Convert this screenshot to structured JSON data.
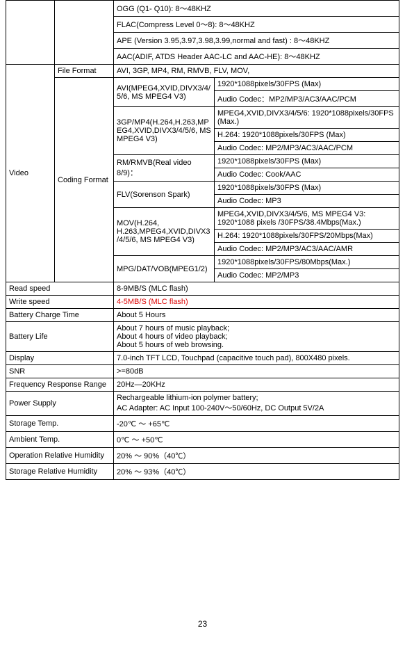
{
  "audio_codecs": {
    "ogg": "OGG (Q1- Q10): 8～48KHZ",
    "flac": "FLAC(Compress Level 0～8): 8～48KHZ",
    "ape": "APE (Version 3.95,3.97,3.98,3.99,normal and fast) : 8～48KHZ",
    "aac": "AAC(ADIF, ATDS Header AAC-LC and AAC-HE): 8～48KHZ"
  },
  "video": {
    "label": "Video",
    "file_format_label": "File Format",
    "file_format_value": "AVI, 3GP, MP4, RM, RMVB, FLV, MOV,",
    "coding_format_label": "Coding Format",
    "avi": {
      "label": "AVI(MPEG4,XVID,DIVX3/4/5/6, MS MPEG4 V3)",
      "r1": "1920*1088pixels/30FPS (Max)",
      "r2": "Audio Codec：MP2/MP3/AC3/AAC/PCM"
    },
    "gp": {
      "label": "3GP/MP4(H.264,H.263,MPEG4,XVID,DIVX3/4/5/6, MS MPEG4 V3)",
      "r1": "MPEG4,XVID,DIVX3/4/5/6: 1920*1088pixels/30FPS (Max.)",
      "r2": "H.264: 1920*1088pixels/30FPS (Max)",
      "r3": "Audio Codec: MP2/MP3/AC3/AAC/PCM"
    },
    "rm": {
      "label": "RM/RMVB(Real video 8/9)：",
      "r1": "1920*1088pixels/30FPS (Max)",
      "r2": "Audio Codec: Cook/AAC"
    },
    "flv": {
      "label": "FLV(Sorenson Spark)",
      "r1": "1920*1088pixels/30FPS (Max)",
      "r2": "Audio Codec: MP3"
    },
    "mov": {
      "label": "MOV(H.264, H.263,MPEG4,XVID,DIVX3/4/5/6, MS MPEG4 V3)",
      "r1": "MPEG4,XVID,DIVX3/4/5/6, MS MPEG4 V3: 1920*1088 pixels /30FPS/38.4Mbps(Max.)",
      "r2": "H.264: 1920*1088pixels/30FPS/20Mbps(Max)",
      "r3": "Audio Codec: MP2/MP3/AC3/AAC/AMR"
    },
    "mpg": {
      "label": "MPG/DAT/VOB(MPEG1/2)",
      "r1": "1920*1088pixels/30FPS/80Mbps(Max.)",
      "r2": "Audio Codec: MP2/MP3"
    }
  },
  "specs": {
    "read_speed": {
      "label": "Read speed",
      "value": "8-9MB/S (MLC flash)"
    },
    "write_speed": {
      "label": "Write speed",
      "value": "4-5MB/S (MLC flash)"
    },
    "battery_charge": {
      "label": "Battery Charge Time",
      "value": "About 5 Hours"
    },
    "battery_life": {
      "label": "Battery Life",
      "l1": "About 7 hours of music playback;",
      "l2": "About 4 hours of video playback;",
      "l3": "About 5 hours of web browsing."
    },
    "display": {
      "label": "Display",
      "value": "7.0-inch TFT LCD, Touchpad (capacitive touch pad), 800X480 pixels."
    },
    "snr": {
      "label": "SNR",
      "value": ">=80dB"
    },
    "freq": {
      "label": "Frequency Response Range",
      "value": "20Hz—20KHz"
    },
    "power": {
      "label": "Power Supply",
      "l1": "Rechargeable lithium-ion polymer battery;",
      "l2": "AC Adapter: AC Input 100-240V～50/60Hz, DC Output 5V/2A"
    },
    "storage_temp": {
      "label": "Storage Temp.",
      "value": "-20℃ ～ +65℃"
    },
    "ambient_temp": {
      "label": "Ambient Temp.",
      "value": "0℃ ～ +50℃"
    },
    "op_humidity": {
      "label": "Operation Relative Humidity",
      "value": "20% ～ 90%（40℃）"
    },
    "storage_humidity": {
      "label": "Storage Relative Humidity",
      "value": "20% ～ 93%（40℃）"
    }
  },
  "page_number": "23"
}
